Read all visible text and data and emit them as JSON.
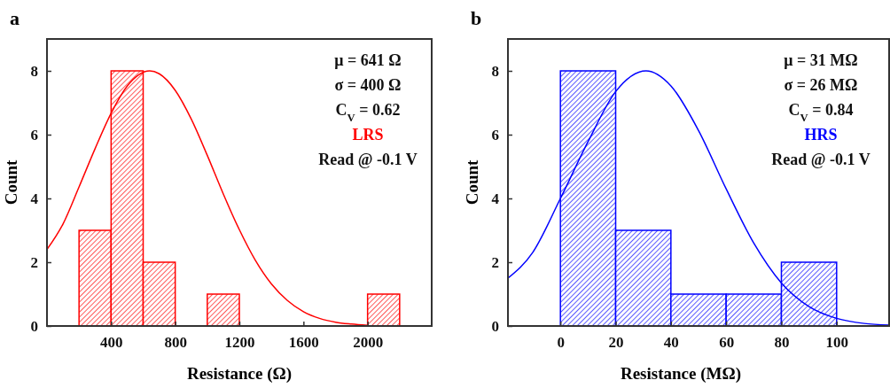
{
  "chart_data": [
    {
      "type": "histogram",
      "title": "a",
      "xlabel": "Resistance (Ω)",
      "ylabel": "Count",
      "xlim": [
        0,
        2400
      ],
      "xticks": [
        400,
        800,
        1200,
        1600,
        2000
      ],
      "ylim": [
        0,
        9
      ],
      "yticks": [
        0,
        2,
        4,
        6,
        8
      ],
      "bins": [
        200,
        400,
        600,
        800,
        1000,
        1200,
        1400,
        1600,
        1800,
        2000,
        2200
      ],
      "series": [
        {
          "name": "LRS",
          "color": "#ff0000",
          "values": [
            3,
            8,
            2,
            0,
            1,
            0,
            0,
            0,
            0,
            1
          ]
        },
        {
          "type": "line",
          "color": "#ff0000",
          "x": [
            0,
            100,
            200,
            300,
            400,
            500,
            641,
            700,
            800,
            900,
            1000,
            1100,
            1200,
            1300,
            1400,
            1500,
            1600,
            1700,
            1800,
            1900,
            2000
          ],
          "values": [
            2.4,
            3.2,
            4.36,
            5.56,
            6.67,
            7.52,
            8,
            7.91,
            7.39,
            6.49,
            5.35,
            4.14,
            3.02,
            2.06,
            1.32,
            0.8,
            0.45,
            0.24,
            0.12,
            0.06,
            0.02
          ]
        }
      ],
      "annotations": [
        "μ = 641 Ω",
        "σ = 400 Ω",
        "C$_{V}$ = 0.62",
        "Read @ -0.1 V"
      ]
    },
    {
      "type": "histogram",
      "title": "b",
      "xlabel": "Resistance (MΩ)",
      "ylabel": "Count",
      "xlim": [
        -19,
        119
      ],
      "xticks": [
        0,
        20,
        40,
        60,
        80,
        100
      ],
      "ylim": [
        0,
        9
      ],
      "yticks": [
        0,
        2,
        4,
        6,
        8
      ],
      "bins": [
        0,
        20,
        40,
        60,
        80,
        100
      ],
      "series": [
        {
          "name": "HRS",
          "color": "#0000ff",
          "values": [
            8,
            3,
            1,
            1,
            2
          ]
        },
        {
          "type": "line",
          "color": "#0000ff",
          "x": [
            -19,
            -10,
            0,
            10,
            20,
            31,
            40,
            50,
            60,
            70,
            80,
            90,
            100,
            110,
            119
          ],
          "values": [
            1.5,
            2.31,
            4.0,
            5.78,
            7.35,
            8,
            7.53,
            6.13,
            4.3,
            2.6,
            1.35,
            0.61,
            0.24,
            0.08,
            0.03
          ]
        }
      ],
      "annotations": [
        "μ = 31 MΩ",
        "σ = 26 MΩ",
        "C$_{V}$ = 0.84",
        "Read @ -0.1 V"
      ]
    }
  ]
}
